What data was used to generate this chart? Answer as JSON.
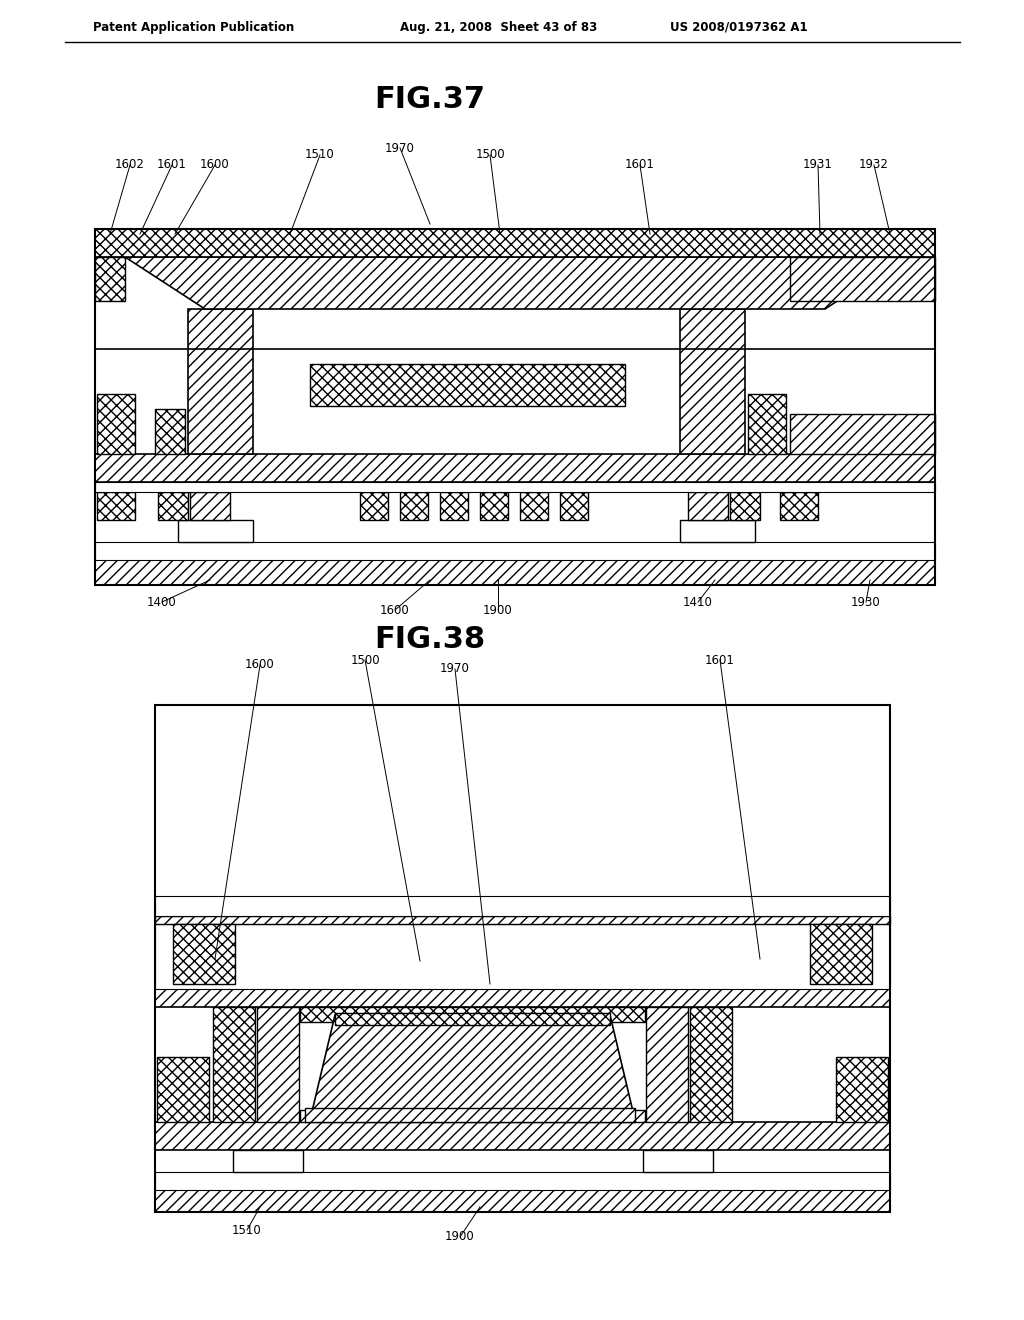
{
  "bg_color": "#ffffff",
  "header_left": "Patent Application Publication",
  "header_mid": "Aug. 21, 2008  Sheet 43 of 83",
  "header_right": "US 2008/0197362 A1",
  "fig37_title": "FIG.37",
  "fig38_title": "FIG.38"
}
